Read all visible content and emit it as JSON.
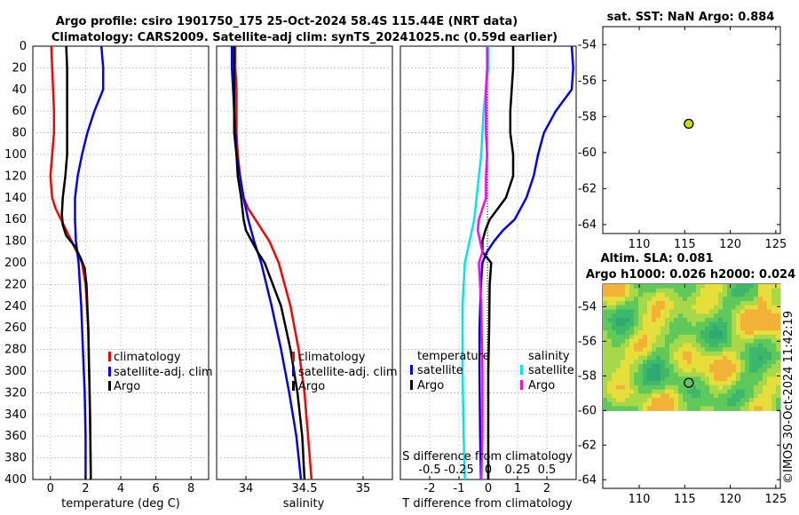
{
  "title_line1": "Argo profile: csiro 1901750_175 25-Oct-2024 58.4S 115.44E (NRT data)",
  "title_line2": "Climatology: CARS2009. Satellite-adj clim: synTS_20241025.nc (0.59d earlier)",
  "credit": "©IMOS 30-Oct-2024 11:42:19",
  "colors": {
    "climatology": "#ff0000",
    "satellite": "#0000ff",
    "argo": "#000000",
    "sat_s": "#00e5ee",
    "argo_s": "#ff00ff",
    "marker": "#c8e000"
  },
  "legend": {
    "climatology": "climatology",
    "satellite_adj": "satellite-adj. clim",
    "argo": "Argo",
    "temperature": "temperature",
    "salinity": "salinity",
    "satellite": "satellite"
  },
  "sst_title": "sat. SST: NaN Argo: 0.884",
  "sla_title1": "Altim. SLA: 0.081",
  "sla_title2": "Argo h1000: 0.026 h2000: 0.024",
  "chart_data": [
    {
      "type": "line",
      "xlabel": "temperature (deg C)",
      "ylabel": "",
      "xlim": [
        -1,
        9
      ],
      "ylim": [
        400,
        0
      ],
      "xticks": [
        0,
        2,
        4,
        6,
        8
      ],
      "yticks": [
        0,
        20,
        40,
        60,
        80,
        100,
        120,
        140,
        160,
        180,
        200,
        220,
        240,
        260,
        280,
        300,
        320,
        340,
        360,
        380,
        400
      ],
      "grid": true,
      "series": [
        {
          "name": "climatology",
          "depth": [
            0,
            20,
            40,
            60,
            80,
            100,
            120,
            140,
            150,
            160,
            170,
            180,
            190,
            200,
            220,
            260,
            300,
            340,
            400
          ],
          "values": [
            0.05,
            0.1,
            0.15,
            0.2,
            0.2,
            0.1,
            0.0,
            0.1,
            0.3,
            0.6,
            0.9,
            1.2,
            1.5,
            1.8,
            2.0,
            2.15,
            2.2,
            2.25,
            2.3
          ]
        },
        {
          "name": "satellite-adj. clim",
          "depth": [
            0,
            20,
            40,
            60,
            80,
            100,
            120,
            140,
            160,
            180,
            200,
            240,
            280,
            320,
            360,
            400
          ],
          "values": [
            2.9,
            3.0,
            3.0,
            2.5,
            2.1,
            1.8,
            1.55,
            1.4,
            1.4,
            1.45,
            1.6,
            1.75,
            1.85,
            1.95,
            2.0,
            2.0
          ]
        },
        {
          "name": "Argo",
          "depth": [
            0,
            20,
            40,
            60,
            80,
            100,
            120,
            140,
            155,
            165,
            175,
            185,
            195,
            205,
            220,
            260,
            300,
            340,
            400
          ],
          "values": [
            0.9,
            0.95,
            0.95,
            0.95,
            0.95,
            0.95,
            0.85,
            0.7,
            0.65,
            0.7,
            0.9,
            1.4,
            1.7,
            1.95,
            2.05,
            2.15,
            2.2,
            2.25,
            2.3
          ]
        }
      ]
    },
    {
      "type": "line",
      "xlabel": "salinity",
      "ylabel": "",
      "xlim": [
        33.75,
        35.25
      ],
      "ylim": [
        400,
        0
      ],
      "xticks": [
        34,
        34.5,
        35
      ],
      "xticklabels": [
        "34",
        "34.5",
        "35"
      ],
      "grid": true,
      "series": [
        {
          "name": "climatology",
          "depth": [
            0,
            20,
            40,
            60,
            80,
            100,
            120,
            140,
            150,
            160,
            170,
            180,
            200,
            240,
            280,
            320,
            360,
            400
          ],
          "values": [
            33.91,
            33.91,
            33.92,
            33.92,
            33.92,
            33.93,
            33.95,
            33.98,
            34.02,
            34.08,
            34.14,
            34.2,
            34.28,
            34.38,
            34.45,
            34.5,
            34.53,
            34.56
          ]
        },
        {
          "name": "satellite-adj. clim",
          "depth": [
            0,
            20,
            40,
            60,
            80,
            100,
            120,
            140,
            160,
            180,
            200,
            240,
            280,
            320,
            360,
            400
          ],
          "values": [
            33.88,
            33.88,
            33.89,
            33.9,
            33.91,
            33.92,
            33.95,
            33.98,
            34.02,
            34.07,
            34.13,
            34.22,
            34.3,
            34.37,
            34.43,
            34.47
          ]
        },
        {
          "name": "Argo",
          "depth": [
            0,
            20,
            40,
            60,
            80,
            100,
            120,
            140,
            160,
            170,
            180,
            190,
            200,
            240,
            280,
            320,
            360,
            400
          ],
          "values": [
            33.9,
            33.9,
            33.9,
            33.9,
            33.9,
            33.92,
            33.93,
            33.96,
            33.98,
            34.0,
            34.05,
            34.1,
            34.16,
            34.3,
            34.38,
            34.44,
            34.48,
            34.5
          ]
        }
      ]
    },
    {
      "type": "line",
      "xlabel": "T difference from climatology",
      "xlabel_top": "S difference from climatology",
      "xlim": [
        -3,
        3
      ],
      "ylim": [
        400,
        0
      ],
      "xticks": [
        -2,
        -1,
        0,
        1,
        2
      ],
      "xticklabels": [
        "-2",
        "-1",
        "0",
        "1",
        "2"
      ],
      "s_xticks": [
        -0.5,
        -0.25,
        0,
        0.25,
        0.5
      ],
      "s_xticklabels": [
        "-0.5",
        "-0.25",
        "0",
        "0.25",
        "0.5"
      ],
      "grid": true,
      "series": [
        {
          "name": "temperature satellite",
          "depth": [
            0,
            20,
            40,
            60,
            80,
            100,
            120,
            140,
            160,
            170,
            180,
            190,
            200,
            220,
            260,
            300,
            360,
            400
          ],
          "values": [
            2.85,
            2.9,
            2.85,
            2.3,
            1.9,
            1.7,
            1.55,
            1.3,
            0.9,
            0.5,
            0.2,
            -0.05,
            -0.2,
            -0.25,
            -0.3,
            -0.3,
            -0.28,
            -0.25
          ]
        },
        {
          "name": "temperature Argo",
          "depth": [
            0,
            20,
            40,
            60,
            80,
            100,
            120,
            140,
            160,
            170,
            180,
            190,
            200,
            220,
            260,
            300,
            360,
            400
          ],
          "values": [
            0.85,
            0.85,
            0.8,
            0.75,
            0.75,
            0.85,
            0.85,
            0.6,
            0.05,
            -0.1,
            -0.2,
            -0.2,
            0.1,
            0.05,
            0.03,
            0.0,
            0.0,
            0.0
          ]
        },
        {
          "name": "salinity satellite",
          "depth": [
            0,
            20,
            40,
            60,
            80,
            100,
            120,
            140,
            160,
            180,
            200,
            240,
            300,
            360,
            400
          ],
          "values": [
            0.0,
            0.0,
            -0.02,
            -0.04,
            -0.05,
            -0.06,
            -0.08,
            -0.1,
            -0.12,
            -0.16,
            -0.2,
            -0.22,
            -0.22,
            -0.21,
            -0.2
          ]
        },
        {
          "name": "salinity Argo",
          "depth": [
            0,
            20,
            40,
            60,
            80,
            100,
            120,
            140,
            150,
            160,
            170,
            180,
            190,
            200,
            240,
            300,
            360,
            400
          ],
          "values": [
            -0.01,
            -0.01,
            -0.02,
            -0.02,
            -0.02,
            -0.01,
            -0.02,
            -0.02,
            -0.05,
            -0.08,
            -0.09,
            -0.07,
            -0.05,
            -0.08,
            -0.06,
            -0.05,
            -0.05,
            -0.06
          ]
        }
      ]
    },
    {
      "type": "scatter",
      "title": "sat. SST: NaN Argo: 0.884",
      "xlim": [
        106,
        125.5
      ],
      "ylim": [
        -64.5,
        -53
      ],
      "xticks": [
        110,
        115,
        120,
        125
      ],
      "yticks": [
        -54,
        -56,
        -58,
        -60,
        -62,
        -64
      ],
      "grid": false,
      "points": [
        {
          "x": 115.44,
          "y": -58.4
        }
      ]
    },
    {
      "type": "heatmap",
      "title": "Altim. SLA: 0.081 / Argo h1000: 0.026 h2000: 0.024",
      "xlim": [
        106,
        125.5
      ],
      "ylim": [
        -64.5,
        -52.7
      ],
      "xticks": [
        110,
        115,
        120,
        125
      ],
      "yticks": [
        -54,
        -56,
        -58,
        -60,
        -62,
        -64
      ],
      "data_extent": {
        "lon": [
          106,
          125.5
        ],
        "lat": [
          -60,
          -52.7
        ]
      },
      "points": [
        {
          "x": 115.44,
          "y": -58.4
        }
      ]
    }
  ]
}
